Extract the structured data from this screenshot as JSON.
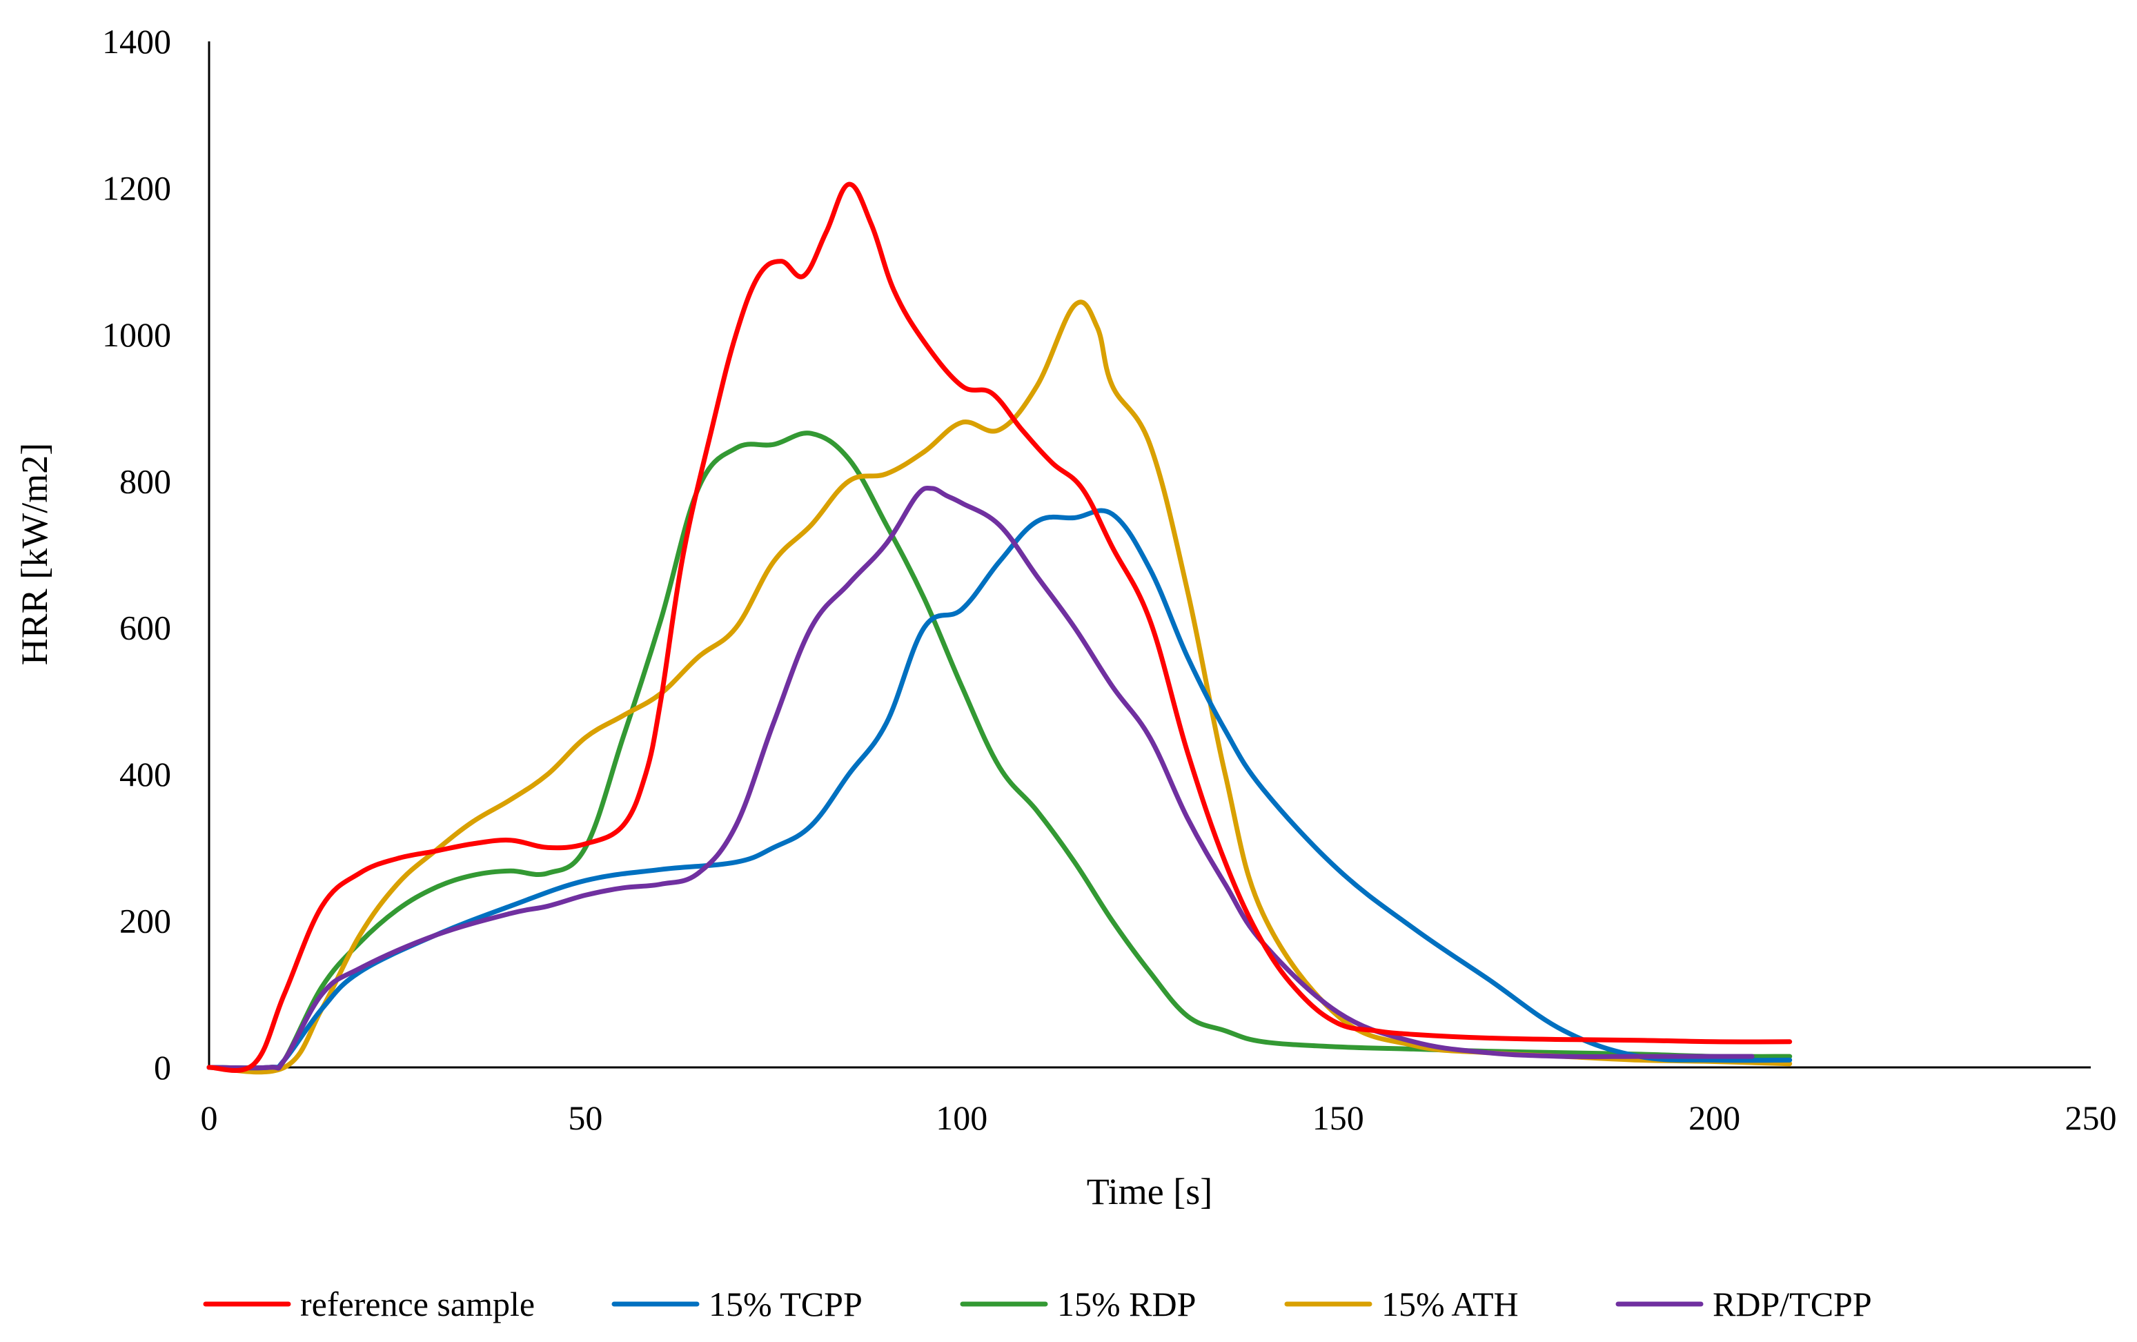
{
  "chart_data": {
    "type": "line",
    "title": "",
    "xlabel": "Time [s]",
    "ylabel": "HRR [kW/m2]",
    "xlim": [
      0,
      250
    ],
    "ylim": [
      0,
      1400
    ],
    "xticks": [
      0,
      50,
      100,
      150,
      200,
      250
    ],
    "yticks": [
      0,
      200,
      400,
      600,
      800,
      1000,
      1200,
      1400
    ],
    "grid": false,
    "legend_position": "bottom",
    "series": [
      {
        "name": "reference sample",
        "color": "#ff0000",
        "x": [
          0,
          6,
          10,
          15,
          20,
          25,
          30,
          35,
          40,
          45,
          50,
          55,
          58,
          60,
          63,
          67,
          70,
          73,
          76,
          79,
          82,
          85,
          88,
          91,
          95,
          100,
          104,
          108,
          112,
          116,
          120,
          125,
          130,
          135,
          140,
          145,
          150,
          155,
          160,
          170,
          180,
          190,
          200,
          210
        ],
        "y": [
          0,
          5,
          100,
          220,
          265,
          285,
          295,
          305,
          310,
          300,
          305,
          330,
          400,
          500,
          700,
          880,
          1000,
          1080,
          1100,
          1080,
          1140,
          1205,
          1150,
          1060,
          990,
          930,
          920,
          870,
          825,
          790,
          710,
          610,
          430,
          280,
          170,
          100,
          60,
          50,
          45,
          40,
          38,
          37,
          35,
          35
        ]
      },
      {
        "name": "15% TCPP",
        "color": "#0070c0",
        "x": [
          0,
          8,
          10,
          15,
          20,
          30,
          40,
          50,
          60,
          70,
          75,
          80,
          85,
          90,
          95,
          100,
          105,
          110,
          115,
          120,
          125,
          130,
          135,
          140,
          150,
          160,
          170,
          180,
          190,
          200,
          210
        ],
        "y": [
          0,
          0,
          10,
          80,
          130,
          180,
          220,
          255,
          270,
          280,
          300,
          330,
          400,
          470,
          600,
          625,
          690,
          745,
          750,
          755,
          680,
          560,
          460,
          380,
          270,
          190,
          120,
          50,
          15,
          10,
          10
        ]
      },
      {
        "name": "15% RDP",
        "color": "#339933",
        "x": [
          0,
          8,
          10,
          15,
          20,
          25,
          30,
          35,
          40,
          45,
          50,
          55,
          60,
          65,
          70,
          75,
          80,
          85,
          90,
          95,
          100,
          105,
          110,
          115,
          120,
          125,
          130,
          135,
          140,
          150,
          160,
          170,
          180,
          190,
          200,
          210
        ],
        "y": [
          0,
          0,
          10,
          110,
          170,
          215,
          245,
          262,
          268,
          265,
          300,
          450,
          610,
          790,
          845,
          850,
          865,
          830,
          740,
          640,
          520,
          410,
          350,
          280,
          200,
          130,
          70,
          50,
          35,
          28,
          25,
          22,
          20,
          18,
          15,
          15
        ]
      },
      {
        "name": "15% ATH",
        "color": "#d9a000",
        "x": [
          0,
          10,
          15,
          20,
          25,
          30,
          35,
          40,
          45,
          50,
          55,
          60,
          65,
          70,
          75,
          80,
          85,
          90,
          95,
          100,
          105,
          110,
          115,
          118,
          120,
          125,
          130,
          135,
          140,
          150,
          160,
          170,
          180,
          190,
          200,
          210
        ],
        "y": [
          0,
          0,
          80,
          180,
          250,
          295,
          335,
          365,
          400,
          450,
          480,
          510,
          560,
          600,
          690,
          740,
          800,
          810,
          840,
          880,
          870,
          930,
          1040,
          1010,
          930,
          850,
          650,
          400,
          210,
          70,
          30,
          20,
          15,
          10,
          8,
          5
        ]
      },
      {
        "name": "RDP/TCPP",
        "color": "#7030a0",
        "x": [
          0,
          8,
          10,
          15,
          20,
          30,
          40,
          45,
          50,
          55,
          60,
          65,
          70,
          75,
          80,
          85,
          90,
          94,
          96,
          98,
          100,
          105,
          110,
          115,
          120,
          125,
          130,
          135,
          140,
          150,
          160,
          170,
          180,
          190,
          200,
          205
        ],
        "y": [
          0,
          0,
          10,
          100,
          135,
          180,
          210,
          220,
          235,
          245,
          250,
          265,
          330,
          470,
          600,
          660,
          715,
          780,
          790,
          780,
          770,
          740,
          670,
          600,
          520,
          450,
          340,
          250,
          170,
          75,
          35,
          20,
          15,
          15,
          15,
          15
        ]
      }
    ]
  }
}
